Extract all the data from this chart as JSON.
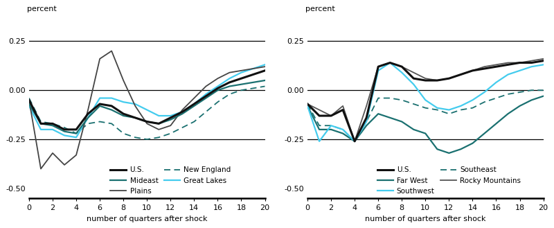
{
  "quarters": [
    0,
    1,
    2,
    3,
    4,
    5,
    6,
    7,
    8,
    9,
    10,
    11,
    12,
    13,
    14,
    15,
    16,
    17,
    18,
    19,
    20
  ],
  "panel1": {
    "US": [
      -0.05,
      -0.17,
      -0.17,
      -0.2,
      -0.2,
      -0.12,
      -0.07,
      -0.08,
      -0.12,
      -0.14,
      -0.16,
      -0.17,
      -0.14,
      -0.11,
      -0.07,
      -0.03,
      0.01,
      0.04,
      0.06,
      0.08,
      0.1
    ],
    "Plains": [
      -0.05,
      -0.4,
      -0.32,
      -0.38,
      -0.33,
      -0.1,
      0.16,
      0.2,
      0.05,
      -0.08,
      -0.17,
      -0.2,
      -0.18,
      -0.1,
      -0.04,
      0.02,
      0.06,
      0.09,
      0.1,
      0.11,
      0.12
    ],
    "Mideast": [
      -0.07,
      -0.17,
      -0.18,
      -0.21,
      -0.22,
      -0.14,
      -0.08,
      -0.1,
      -0.13,
      -0.14,
      -0.16,
      -0.17,
      -0.15,
      -0.12,
      -0.08,
      -0.04,
      0.0,
      0.02,
      0.03,
      0.04,
      0.05
    ],
    "NewEngland": [
      -0.04,
      -0.16,
      -0.17,
      -0.19,
      -0.22,
      -0.17,
      -0.16,
      -0.17,
      -0.22,
      -0.24,
      -0.25,
      -0.24,
      -0.22,
      -0.19,
      -0.16,
      -0.11,
      -0.06,
      -0.02,
      0.0,
      0.01,
      0.02
    ],
    "GreatLakes": [
      -0.08,
      -0.2,
      -0.2,
      -0.23,
      -0.24,
      -0.14,
      -0.04,
      -0.04,
      -0.06,
      -0.07,
      -0.1,
      -0.13,
      -0.13,
      -0.11,
      -0.07,
      -0.02,
      0.02,
      0.06,
      0.09,
      0.11,
      0.13
    ]
  },
  "panel2": {
    "US": [
      -0.07,
      -0.13,
      -0.13,
      -0.1,
      -0.26,
      -0.14,
      0.12,
      0.14,
      0.12,
      0.06,
      0.05,
      0.05,
      0.06,
      0.08,
      0.1,
      0.11,
      0.12,
      0.13,
      0.14,
      0.14,
      0.15
    ],
    "FarWest": [
      -0.08,
      -0.2,
      -0.2,
      -0.22,
      -0.26,
      -0.18,
      -0.12,
      -0.14,
      -0.16,
      -0.2,
      -0.22,
      -0.3,
      -0.32,
      -0.3,
      -0.27,
      -0.22,
      -0.17,
      -0.12,
      -0.08,
      -0.05,
      -0.03
    ],
    "Southwest": [
      -0.08,
      -0.26,
      -0.18,
      -0.2,
      -0.26,
      -0.16,
      0.1,
      0.14,
      0.09,
      0.03,
      -0.05,
      -0.09,
      -0.1,
      -0.08,
      -0.05,
      -0.01,
      0.04,
      0.08,
      0.1,
      0.12,
      0.13
    ],
    "Southeast": [
      -0.07,
      -0.18,
      -0.18,
      -0.2,
      -0.26,
      -0.16,
      -0.04,
      -0.04,
      -0.05,
      -0.07,
      -0.09,
      -0.1,
      -0.12,
      -0.1,
      -0.09,
      -0.06,
      -0.04,
      -0.02,
      -0.01,
      0.0,
      0.0
    ],
    "RockyMtn": [
      -0.07,
      -0.1,
      -0.13,
      -0.08,
      -0.26,
      -0.08,
      0.12,
      0.14,
      0.12,
      0.09,
      0.06,
      0.05,
      0.06,
      0.08,
      0.1,
      0.12,
      0.13,
      0.14,
      0.14,
      0.15,
      0.16
    ]
  },
  "colors": {
    "US": "#111111",
    "Plains": "#444444",
    "Mideast": "#1a7070",
    "NewEngland": "#1a7070",
    "GreatLakes": "#44ccee",
    "FarWest": "#1a7070",
    "Southwest": "#44ccee",
    "Southeast": "#1a7070",
    "RockyMtn": "#555555"
  },
  "ylim": [
    -0.55,
    0.35
  ],
  "yticks": [
    -0.5,
    -0.25,
    0.0,
    0.25
  ],
  "hlines": [
    0.25,
    0.0,
    -0.25
  ],
  "xlabel": "number of quarters after shock",
  "ylabel": "percent",
  "xticks": [
    0,
    2,
    4,
    6,
    8,
    10,
    12,
    14,
    16,
    18,
    20
  ]
}
